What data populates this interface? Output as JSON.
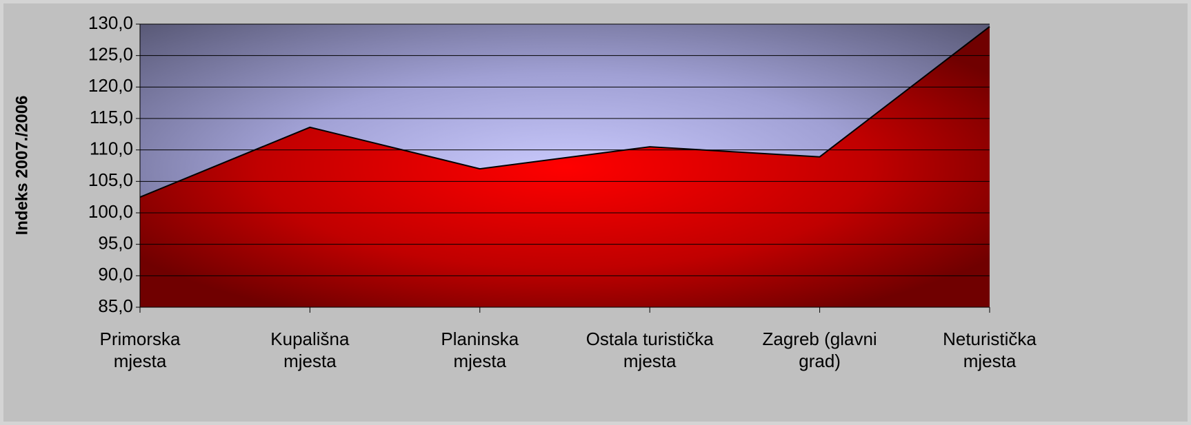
{
  "chart_data": {
    "type": "area",
    "ylabel": "Indeks 2007./2006",
    "categories": [
      "Primorska\nmjesta",
      "Kupališna\nmjesta",
      "Planinska\nmjesta",
      "Ostala turistička\nmjesta",
      "Zagreb (glavni\ngrad)",
      "Neturistička\nmjesta"
    ],
    "values": [
      102.5,
      113.6,
      107.0,
      110.5,
      108.9,
      129.6
    ],
    "color": "#e00000",
    "ylim": [
      85,
      130
    ],
    "yticks": [
      {
        "value": 85,
        "label": "85,0"
      },
      {
        "value": 90,
        "label": "90,0"
      },
      {
        "value": 95,
        "label": "95,0"
      },
      {
        "value": 100,
        "label": "100,0"
      },
      {
        "value": 105,
        "label": "105,0"
      },
      {
        "value": 110,
        "label": "110,0"
      },
      {
        "value": 115,
        "label": "115,0"
      },
      {
        "value": 120,
        "label": "120,0"
      },
      {
        "value": 125,
        "label": "125,0"
      },
      {
        "value": 130,
        "label": "130,0"
      }
    ],
    "grid": true
  }
}
